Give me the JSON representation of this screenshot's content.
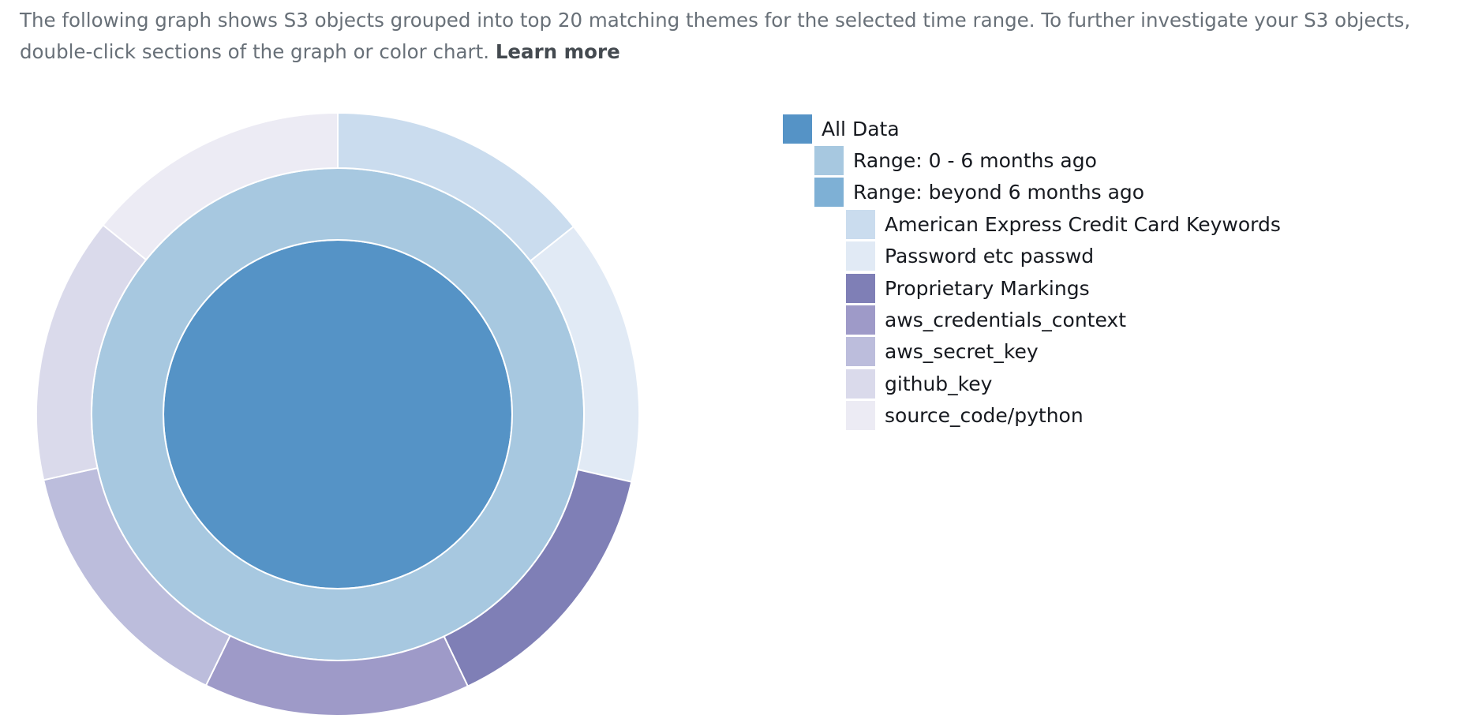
{
  "description": {
    "text": "The following graph shows S3 objects grouped into top 20 matching themes for the selected time range. To further investigate your S3 objects, double-click sections of the graph or color chart.",
    "learn_more": "Learn more"
  },
  "chart_data": {
    "type": "sunburst",
    "title": "",
    "rings": [
      {
        "level": 0,
        "segments": [
          {
            "name": "All Data",
            "value": 100,
            "color": "#5593c6"
          }
        ]
      },
      {
        "level": 1,
        "segments": [
          {
            "name": "Range: 0 - 6 months ago",
            "value": 100,
            "color": "#a7c8e0"
          }
        ]
      },
      {
        "level": 2,
        "segments": [
          {
            "name": "American Express Credit Card Keywords",
            "value": 14.3,
            "color": "#cadcee"
          },
          {
            "name": "Password etc passwd",
            "value": 14.3,
            "color": "#e1eaf5"
          },
          {
            "name": "Proprietary Markings",
            "value": 14.3,
            "color": "#7f7fb6"
          },
          {
            "name": "aws_credentials_context",
            "value": 14.3,
            "color": "#9e9ac8"
          },
          {
            "name": "aws_secret_key",
            "value": 14.3,
            "color": "#bcbddc"
          },
          {
            "name": "github_key",
            "value": 14.3,
            "color": "#dadaeb"
          },
          {
            "name": "source_code/python",
            "value": 14.2,
            "color": "#ecebf4"
          }
        ]
      }
    ],
    "legend": [
      {
        "label": "All Data",
        "color": "#5593c6",
        "level": 0
      },
      {
        "label": "Range: 0 - 6 months ago",
        "color": "#a7c8e0",
        "level": 1
      },
      {
        "label": "Range: beyond 6 months ago",
        "color": "#7eb0d5",
        "level": 1
      },
      {
        "label": "American Express Credit Card Keywords",
        "color": "#cadcee",
        "level": 2
      },
      {
        "label": "Password etc passwd",
        "color": "#e1eaf5",
        "level": 2
      },
      {
        "label": "Proprietary Markings",
        "color": "#7f7fb6",
        "level": 2
      },
      {
        "label": "aws_credentials_context",
        "color": "#9e9ac8",
        "level": 2
      },
      {
        "label": "aws_secret_key",
        "color": "#bcbddc",
        "level": 2
      },
      {
        "label": "github_key",
        "color": "#dadaeb",
        "level": 2
      },
      {
        "label": "source_code/python",
        "color": "#ecebf4",
        "level": 2
      }
    ],
    "legend_position": "right"
  }
}
